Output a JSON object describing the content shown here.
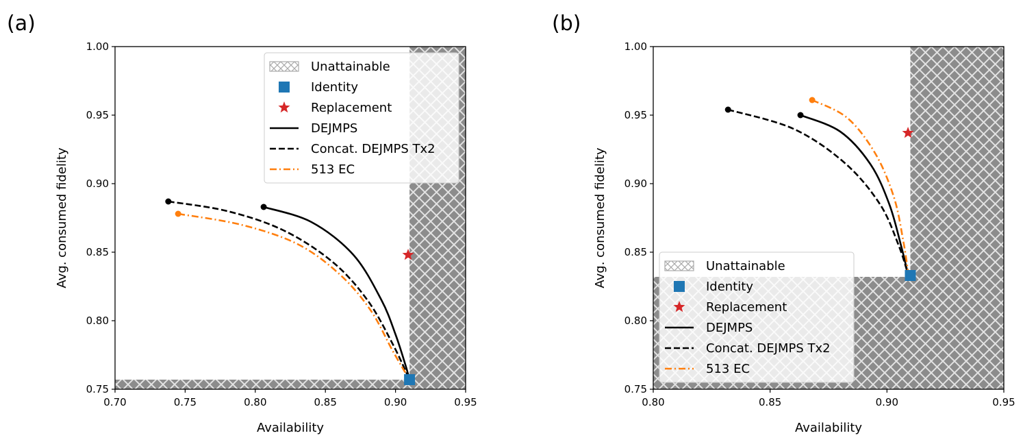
{
  "chart_data": [
    {
      "type": "line",
      "panel_label": "(a)",
      "xlabel": "Availability",
      "ylabel": "Avg. consumed fidelity",
      "xlim": [
        0.7,
        0.95
      ],
      "ylim": [
        0.75,
        1.0
      ],
      "xticks": [
        0.7,
        0.75,
        0.8,
        0.85,
        0.9,
        0.95
      ],
      "xtick_labels": [
        "0.70",
        "0.75",
        "0.80",
        "0.85",
        "0.90",
        "0.95"
      ],
      "yticks": [
        0.75,
        0.8,
        0.85,
        0.9,
        0.95,
        1.0
      ],
      "ytick_labels": [
        "0.75",
        "0.80",
        "0.85",
        "0.90",
        "0.95",
        "1.00"
      ],
      "unattainable_regions": [
        {
          "x": [
            0.91,
            0.95
          ],
          "y": [
            0.75,
            1.0
          ]
        },
        {
          "x": [
            0.7,
            0.95
          ],
          "y": [
            0.75,
            0.757
          ]
        }
      ],
      "series": [
        {
          "name": "DEJMPS",
          "style": "solid",
          "color": "#000000",
          "x": [
            0.806,
            0.84,
            0.87,
            0.89,
            0.9,
            0.907,
            0.91
          ],
          "y": [
            0.883,
            0.872,
            0.848,
            0.815,
            0.79,
            0.768,
            0.757
          ]
        },
        {
          "name": "Concat. DEJMPS Tx2",
          "style": "dashed",
          "color": "#000000",
          "x": [
            0.738,
            0.78,
            0.82,
            0.855,
            0.88,
            0.898,
            0.91
          ],
          "y": [
            0.887,
            0.88,
            0.866,
            0.843,
            0.815,
            0.783,
            0.757
          ]
        },
        {
          "name": "513 EC",
          "style": "dashdot",
          "color": "#ff7f0e",
          "x": [
            0.745,
            0.79,
            0.83,
            0.86,
            0.882,
            0.898,
            0.91
          ],
          "y": [
            0.878,
            0.87,
            0.856,
            0.834,
            0.808,
            0.778,
            0.757
          ]
        }
      ],
      "markers": [
        {
          "name": "Identity",
          "shape": "square",
          "color": "#1f77b4",
          "x": 0.91,
          "y": 0.757
        },
        {
          "name": "Replacement",
          "shape": "star",
          "color": "#d62728",
          "x": 0.909,
          "y": 0.848
        }
      ],
      "legend": {
        "placement": "upper-right",
        "entries": [
          "Unattainable",
          "Identity",
          "Replacement",
          "DEJMPS",
          "Concat. DEJMPS Tx2",
          "513 EC"
        ]
      }
    },
    {
      "type": "line",
      "panel_label": "(b)",
      "xlabel": "Availability",
      "ylabel": "Avg. consumed fidelity",
      "xlim": [
        0.8,
        0.95
      ],
      "ylim": [
        0.75,
        1.0
      ],
      "xticks": [
        0.8,
        0.85,
        0.9,
        0.95
      ],
      "xtick_labels": [
        "0.80",
        "0.85",
        "0.90",
        "0.95"
      ],
      "yticks": [
        0.75,
        0.8,
        0.85,
        0.9,
        0.95,
        1.0
      ],
      "ytick_labels": [
        "0.75",
        "0.80",
        "0.85",
        "0.90",
        "0.95",
        "1.00"
      ],
      "unattainable_regions": [
        {
          "x": [
            0.91,
            0.95
          ],
          "y": [
            0.75,
            1.0
          ]
        },
        {
          "x": [
            0.8,
            0.95
          ],
          "y": [
            0.75,
            0.832
          ]
        }
      ],
      "series": [
        {
          "name": "DEJMPS",
          "style": "solid",
          "color": "#000000",
          "x": [
            0.863,
            0.88,
            0.893,
            0.901,
            0.906,
            0.909
          ],
          "y": [
            0.95,
            0.938,
            0.914,
            0.885,
            0.855,
            0.834
          ]
        },
        {
          "name": "Concat. DEJMPS Tx2",
          "style": "dashed",
          "color": "#000000",
          "x": [
            0.832,
            0.86,
            0.882,
            0.897,
            0.905,
            0.909
          ],
          "y": [
            0.954,
            0.94,
            0.915,
            0.885,
            0.855,
            0.834
          ]
        },
        {
          "name": "513 EC",
          "style": "dashdot",
          "color": "#ff7f0e",
          "x": [
            0.868,
            0.883,
            0.895,
            0.903,
            0.907,
            0.909
          ],
          "y": [
            0.961,
            0.948,
            0.922,
            0.89,
            0.858,
            0.836
          ]
        }
      ],
      "markers": [
        {
          "name": "Identity",
          "shape": "square",
          "color": "#1f77b4",
          "x": 0.91,
          "y": 0.833
        },
        {
          "name": "Replacement",
          "shape": "star",
          "color": "#d62728",
          "x": 0.909,
          "y": 0.937
        }
      ],
      "legend": {
        "placement": "lower-left",
        "entries": [
          "Unattainable",
          "Identity",
          "Replacement",
          "DEJMPS",
          "Concat. DEJMPS Tx2",
          "513 EC"
        ]
      }
    }
  ]
}
